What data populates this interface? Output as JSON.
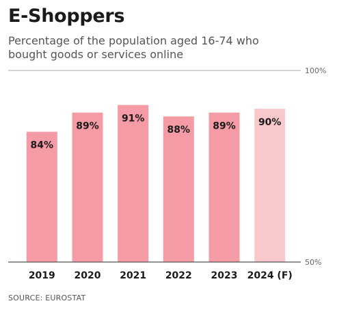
{
  "header": {
    "title": "E-Shoppers",
    "subtitle": "Percentage of the population aged 16-74 who bought goods or services online"
  },
  "footer": {
    "source": "SOURCE: EUROSTAT"
  },
  "chart_data": {
    "type": "bar",
    "title": "E-Shoppers",
    "subtitle": "Percentage of the population aged 16-74 who bought goods or services online",
    "xlabel": "",
    "ylabel": "",
    "categories": [
      "2019",
      "2020",
      "2021",
      "2022",
      "2023",
      "2024 (F)"
    ],
    "values": [
      84,
      89,
      91,
      88,
      89,
      90
    ],
    "value_labels": [
      "84%",
      "89%",
      "91%",
      "88%",
      "89%",
      "90%"
    ],
    "ylim": [
      50,
      100
    ],
    "y_ticks": [
      {
        "value": 100,
        "label": "100%"
      },
      {
        "value": 50,
        "label": "50%"
      }
    ],
    "grid": false,
    "legend": "none",
    "colors": {
      "bar": "#f49ba5",
      "forecast_bar": "#f9c8cd",
      "text": "#1a1a1a",
      "axis": "#999999"
    },
    "forecast_index": 5
  }
}
